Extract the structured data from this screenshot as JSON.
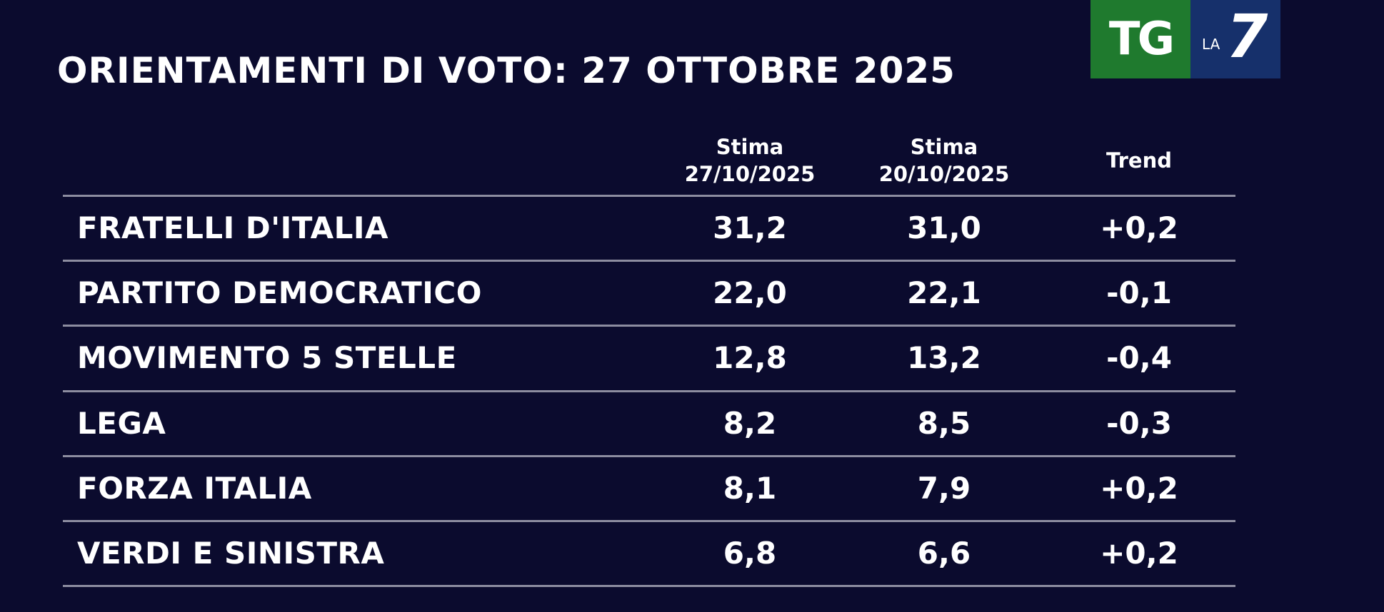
{
  "title": "ORIENTAMENTI DI VOTO: 27 OTTOBRE 2025",
  "logo": {
    "tg": "TG",
    "la": "LA",
    "seven": "7"
  },
  "columns": [
    {
      "line1": "Stima",
      "line2": "27/10/2025"
    },
    {
      "line1": "Stima",
      "line2": "20/10/2025"
    },
    {
      "line1": "Trend",
      "line2": ""
    }
  ],
  "rows": [
    {
      "party": "FRATELLI D'ITALIA",
      "current": "31,2",
      "previous": "31,0",
      "trend": "+0,2"
    },
    {
      "party": "PARTITO DEMOCRATICO",
      "current": "22,0",
      "previous": "22,1",
      "trend": "-0,1"
    },
    {
      "party": "MOVIMENTO 5 STELLE",
      "current": "12,8",
      "previous": "13,2",
      "trend": "-0,4"
    },
    {
      "party": "LEGA",
      "current": "8,2",
      "previous": "8,5",
      "trend": "-0,3"
    },
    {
      "party": "FORZA ITALIA",
      "current": "8,1",
      "previous": "7,9",
      "trend": "+0,2"
    },
    {
      "party": "VERDI E SINISTRA",
      "current": "6,8",
      "previous": "6,6",
      "trend": "+0,2"
    }
  ],
  "colors": {
    "background": "#0b0b2e",
    "text": "#ffffff",
    "divider": "#8d8da0",
    "logo_green": "#1f7a2e",
    "logo_blue": "#16306b"
  }
}
